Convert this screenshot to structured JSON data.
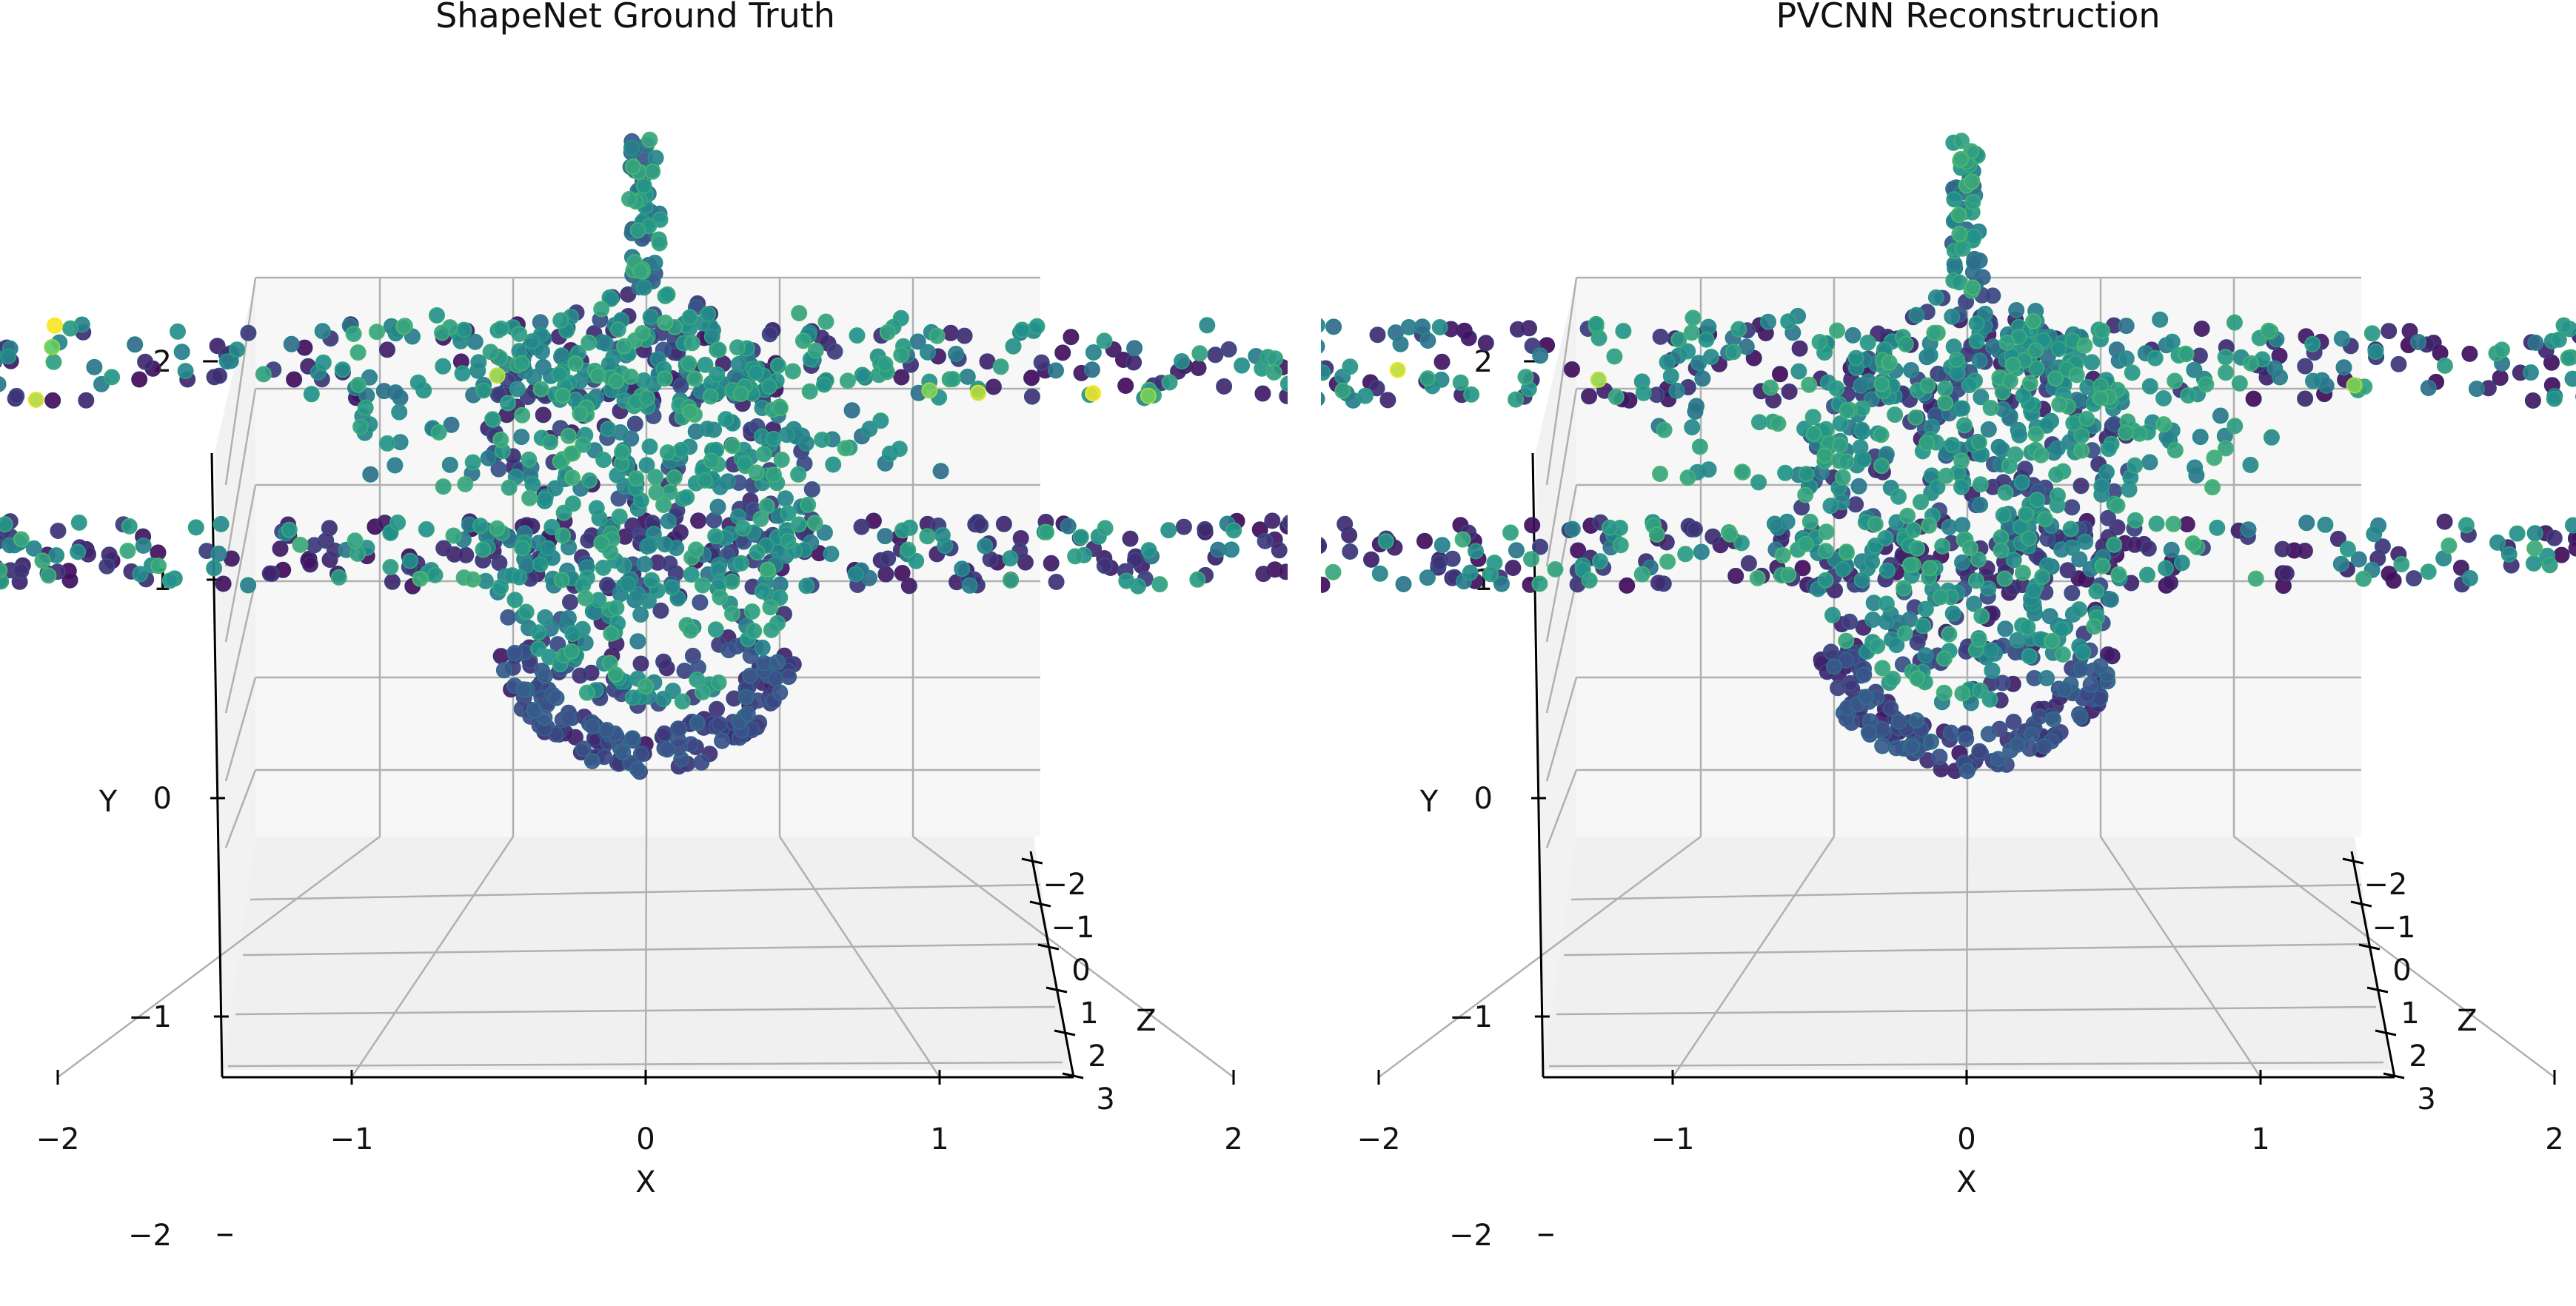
{
  "figure": {
    "panels": [
      {
        "title": "ShapeNet Ground Truth",
        "seed": 11
      },
      {
        "title": "PVCNN Reconstruction",
        "seed": 29
      }
    ]
  },
  "chart_data": [
    {
      "type": "scatter",
      "title": "ShapeNet Ground Truth",
      "xlabel": "X",
      "ylabel": "Y",
      "zlabel": "Z",
      "xticks": [
        "−2",
        "−1",
        "0",
        "1",
        "2"
      ],
      "yticks": [
        "−2",
        "−1",
        "0",
        "1",
        "2"
      ],
      "zticks": [
        "−2",
        "−1",
        "0",
        "1",
        "2",
        "3"
      ],
      "xlim": [
        -2.5,
        2.5
      ],
      "ylim": [
        -2.3,
        2.9
      ],
      "zlim": [
        -2.5,
        3.2
      ],
      "colormap": "viridis",
      "grid": true,
      "description": "3D point cloud of an airplane (fuselage, two wing rows, tail fin) viewed from the front"
    },
    {
      "type": "scatter",
      "title": "PVCNN Reconstruction",
      "xlabel": "X",
      "ylabel": "Y",
      "zlabel": "Z",
      "xticks": [
        "−2",
        "−1",
        "0",
        "1",
        "2"
      ],
      "yticks": [
        "−2",
        "−1",
        "0",
        "1",
        "2"
      ],
      "zticks": [
        "−2",
        "−1",
        "0",
        "1",
        "2",
        "3"
      ],
      "xlim": [
        -2.5,
        2.5
      ],
      "ylim": [
        -2.3,
        2.9
      ],
      "zlim": [
        -2.5,
        3.2
      ],
      "colormap": "viridis",
      "grid": true,
      "description": "Reconstructed 3D point cloud of the same airplane viewed from the front"
    }
  ],
  "colors": {
    "pane_back": "#f7f7f7",
    "pane_floor": "#f0f0f0",
    "pane_side": "#f2f2f2",
    "grid": "#b0b0b0",
    "axis": "#000000",
    "viridis": [
      "#440154",
      "#3b528b",
      "#21918c",
      "#5ec962",
      "#fde725"
    ]
  }
}
